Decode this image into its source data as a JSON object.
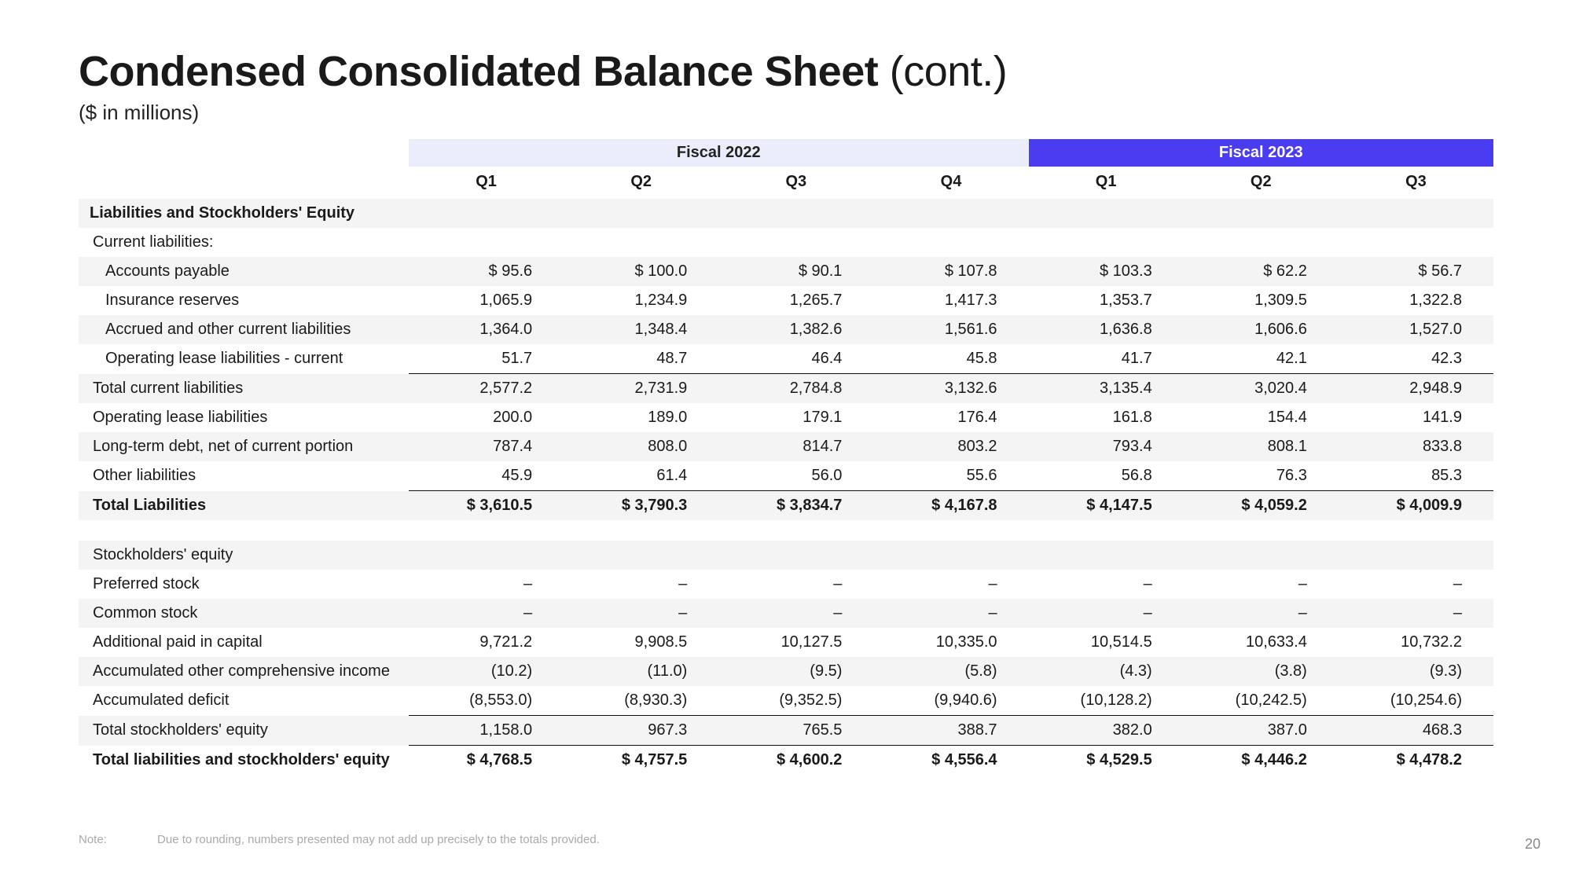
{
  "title_main": "Condensed Consolidated Balance Sheet",
  "title_cont": " (cont.)",
  "subtitle": "($ in millions)",
  "page_number": "20",
  "note_label": "Note:",
  "note_text": "Due to rounding, numbers presented may not add up precisely to the totals provided.",
  "colors": {
    "fy22_bg": "#ebedfb",
    "fy23_bg": "#4a3cf1",
    "fy23_fg": "#ffffff",
    "row_shade": "#f4f4f4",
    "rule": "#111111"
  },
  "header": {
    "fy22": "Fiscal 2022",
    "fy23": "Fiscal 2023",
    "quarters": [
      "Q1",
      "Q2",
      "Q3",
      "Q4",
      "Q1",
      "Q2",
      "Q3"
    ]
  },
  "rows": [
    {
      "label": "Liabilities and Stockholders' Equity",
      "type": "section"
    },
    {
      "label": "Current liabilities:",
      "indent": 1,
      "type": "text"
    },
    {
      "label": "Accounts payable",
      "indent": 2,
      "shade": true,
      "vals": [
        "$ 95.6",
        "$ 100.0",
        "$ 90.1",
        "$ 107.8",
        "$ 103.3",
        "$ 62.2",
        "$ 56.7"
      ]
    },
    {
      "label": "Insurance reserves",
      "indent": 2,
      "vals": [
        "1,065.9",
        "1,234.9",
        "1,265.7",
        "1,417.3",
        "1,353.7",
        "1,309.5",
        "1,322.8"
      ]
    },
    {
      "label": "Accrued and other current liabilities",
      "indent": 2,
      "shade": true,
      "vals": [
        "1,364.0",
        "1,348.4",
        "1,382.6",
        "1,561.6",
        "1,636.8",
        "1,606.6",
        "1,527.0"
      ]
    },
    {
      "label": "Operating lease liabilities - current",
      "indent": 2,
      "botline": true,
      "vals": [
        "51.7",
        "48.7",
        "46.4",
        "45.8",
        "41.7",
        "42.1",
        "42.3"
      ]
    },
    {
      "label": "Total current liabilities",
      "indent": 1,
      "shade": true,
      "vals": [
        "2,577.2",
        "2,731.9",
        "2,784.8",
        "3,132.6",
        "3,135.4",
        "3,020.4",
        "2,948.9"
      ]
    },
    {
      "label": "Operating lease liabilities",
      "indent": 1,
      "vals": [
        "200.0",
        "189.0",
        "179.1",
        "176.4",
        "161.8",
        "154.4",
        "141.9"
      ]
    },
    {
      "label": "Long-term debt, net of current portion",
      "indent": 1,
      "shade": true,
      "vals": [
        "787.4",
        "808.0",
        "814.7",
        "803.2",
        "793.4",
        "808.1",
        "833.8"
      ]
    },
    {
      "label": "Other liabilities",
      "indent": 1,
      "botline": true,
      "vals": [
        "45.9",
        "61.4",
        "56.0",
        "55.6",
        "56.8",
        "76.3",
        "85.3"
      ]
    },
    {
      "label": "Total Liabilities",
      "indent": 1,
      "shade": true,
      "bold": true,
      "vals": [
        "$ 3,610.5",
        "$ 3,790.3",
        "$ 3,834.7",
        "$ 4,167.8",
        "$ 4,147.5",
        "$ 4,059.2",
        "$ 4,009.9"
      ]
    },
    {
      "type": "spacer"
    },
    {
      "label": "Stockholders' equity",
      "indent": 1,
      "shade": true,
      "vals": [
        "",
        "",
        "",
        "",
        "",
        "",
        ""
      ]
    },
    {
      "label": "Preferred stock",
      "indent": 1,
      "vals": [
        "–",
        "–",
        "–",
        "–",
        "–",
        "–",
        "–"
      ]
    },
    {
      "label": "Common stock",
      "indent": 1,
      "shade": true,
      "vals": [
        "–",
        "–",
        "–",
        "–",
        "–",
        "–",
        "–"
      ]
    },
    {
      "label": "Additional paid in capital",
      "indent": 1,
      "vals": [
        "9,721.2",
        "9,908.5",
        "10,127.5",
        "10,335.0",
        "10,514.5",
        "10,633.4",
        "10,732.2"
      ]
    },
    {
      "label": "Accumulated other comprehensive income",
      "indent": 1,
      "shade": true,
      "vals": [
        "(10.2)",
        "(11.0)",
        "(9.5)",
        "(5.8)",
        "(4.3)",
        "(3.8)",
        "(9.3)"
      ]
    },
    {
      "label": "Accumulated deficit",
      "indent": 1,
      "botline": true,
      "vals": [
        "(8,553.0)",
        "(8,930.3)",
        "(9,352.5)",
        "(9,940.6)",
        "(10,128.2)",
        "(10,242.5)",
        "(10,254.6)"
      ]
    },
    {
      "label": "Total stockholders' equity",
      "indent": 1,
      "shade": true,
      "botline": true,
      "vals": [
        "1,158.0",
        "967.3",
        "765.5",
        "388.7",
        "382.0",
        "387.0",
        "468.3"
      ]
    },
    {
      "label": "Total liabilities and stockholders' equity",
      "indent": 1,
      "bold": true,
      "vals": [
        "$ 4,768.5",
        "$ 4,757.5",
        "$ 4,600.2",
        "$ 4,556.4",
        "$ 4,529.5",
        "$ 4,446.2",
        "$ 4,478.2"
      ]
    }
  ]
}
